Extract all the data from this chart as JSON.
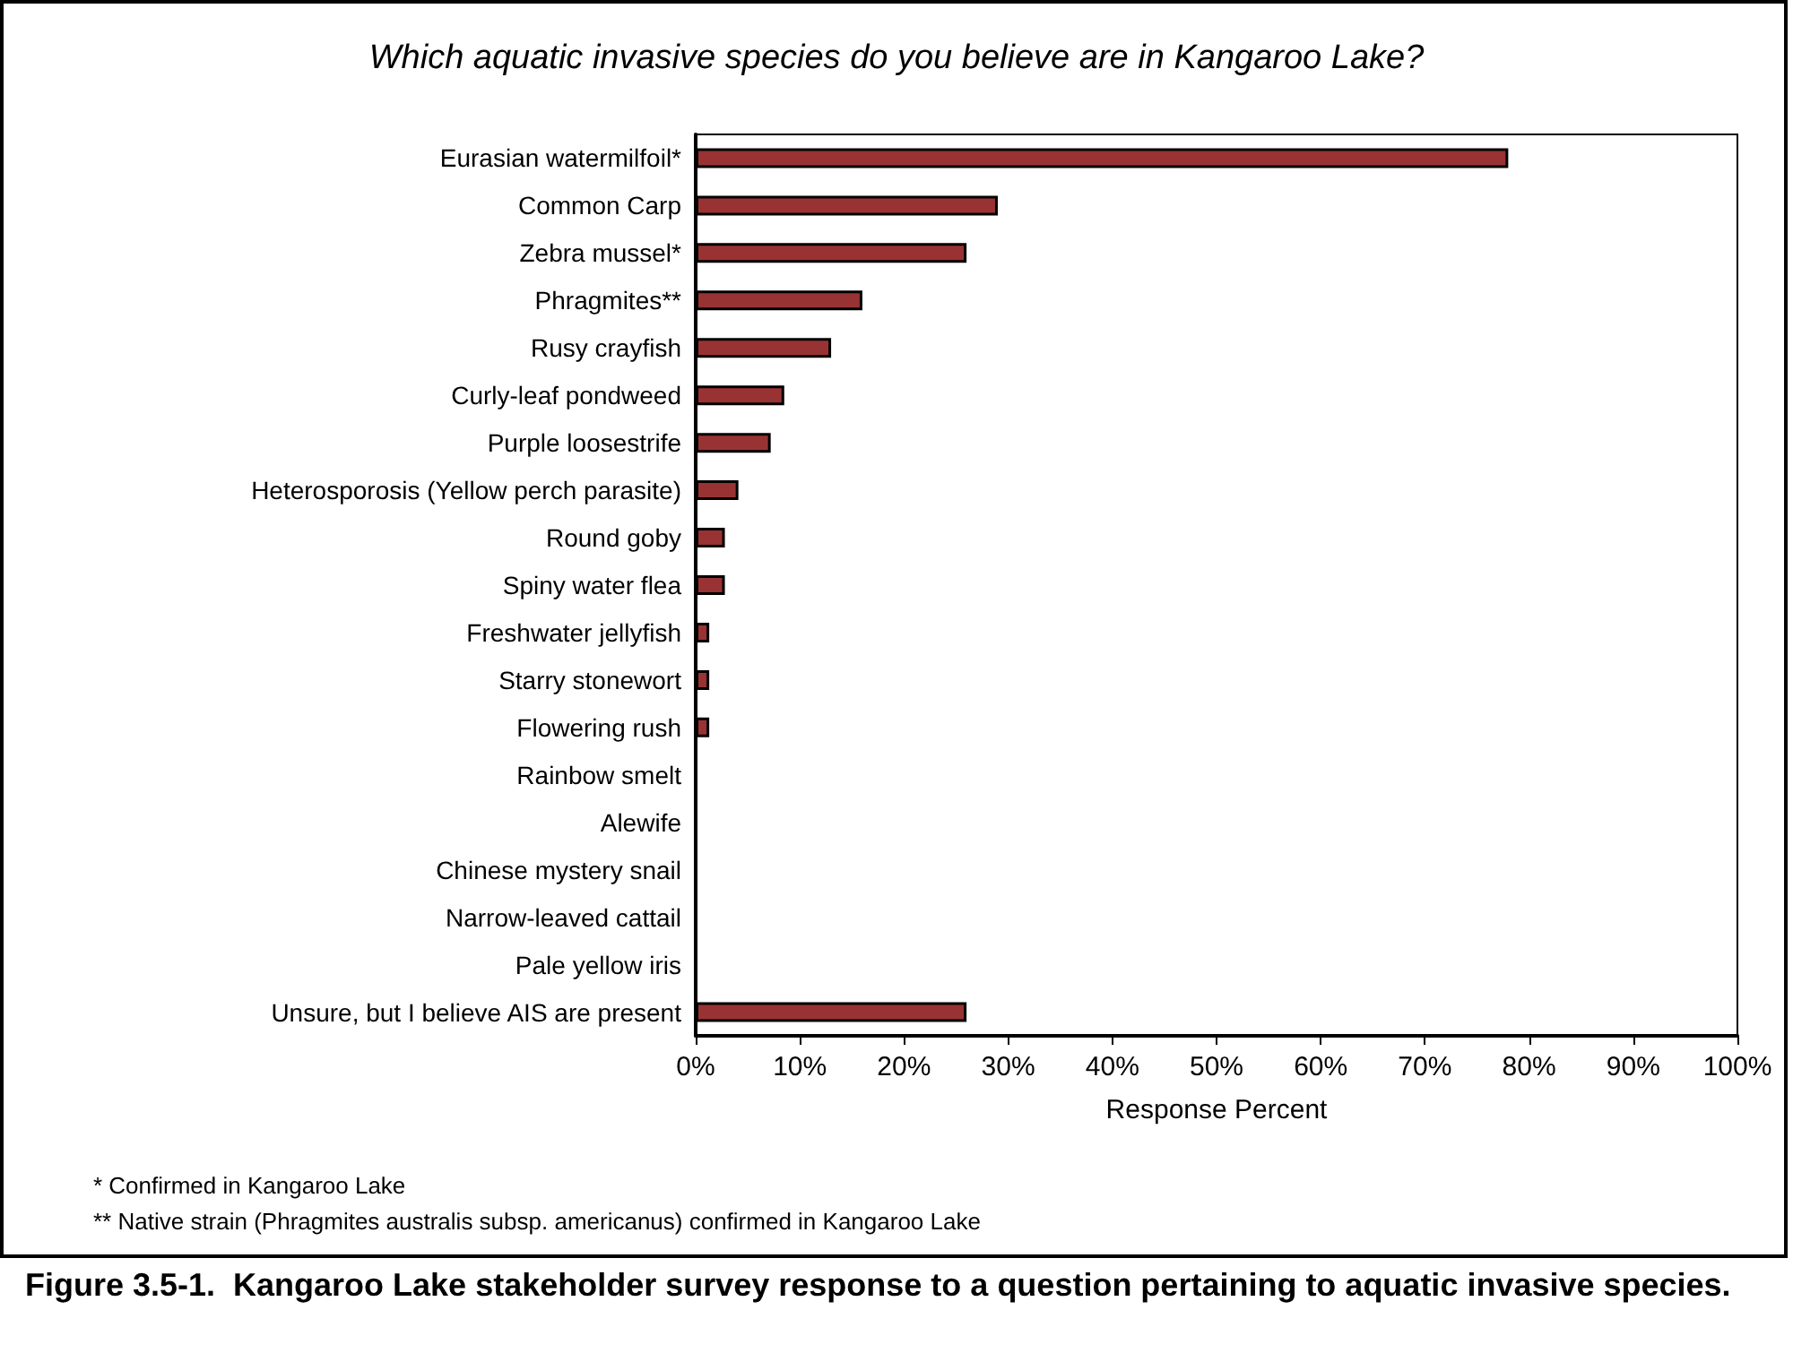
{
  "chart_data": {
    "type": "bar",
    "orientation": "horizontal",
    "title": "Which aquatic invasive species do you believe are in Kangaroo Lake?",
    "xlabel": "Response Percent",
    "categories": [
      "Eurasian watermilfoil*",
      "Common Carp",
      "Zebra mussel*",
      "Phragmites**",
      "Rusy crayfish",
      "Curly-leaf pondweed",
      "Purple loosestrife",
      "Heterosporosis (Yellow perch parasite)",
      "Round goby",
      "Spiny water flea",
      "Freshwater jellyfish",
      "Starry stonewort",
      "Flowering rush",
      "Rainbow smelt",
      "Alewife",
      "Chinese mystery snail",
      "Narrow-leaved cattail",
      "Pale yellow iris",
      "Unsure, but I believe AIS are present"
    ],
    "values": [
      78,
      29,
      26,
      16,
      13,
      8.5,
      7.2,
      4.1,
      2.8,
      2.8,
      1.3,
      1.3,
      1.3,
      0,
      0,
      0,
      0,
      0,
      26
    ],
    "color": "#993333",
    "xlim": [
      0,
      100
    ],
    "xticks": [
      {
        "value": 0,
        "label": "0%"
      },
      {
        "value": 10,
        "label": "10%"
      },
      {
        "value": 20,
        "label": "20%"
      },
      {
        "value": 30,
        "label": "30%"
      },
      {
        "value": 40,
        "label": "40%"
      },
      {
        "value": 50,
        "label": "50%"
      },
      {
        "value": 60,
        "label": "60%"
      },
      {
        "value": 70,
        "label": "70%"
      },
      {
        "value": 80,
        "label": "80%"
      },
      {
        "value": 90,
        "label": "90%"
      },
      {
        "value": 100,
        "label": "100%"
      }
    ],
    "grid": false,
    "annotations": [
      "* Confirmed in Kangaroo Lake",
      "** Native strain (Phragmites australis subsp. americanus) confirmed in Kangaroo Lake",
      "Figure 3.5-1.  Kangaroo Lake stakeholder survey response to a question pertaining to aquatic invasive species."
    ]
  }
}
